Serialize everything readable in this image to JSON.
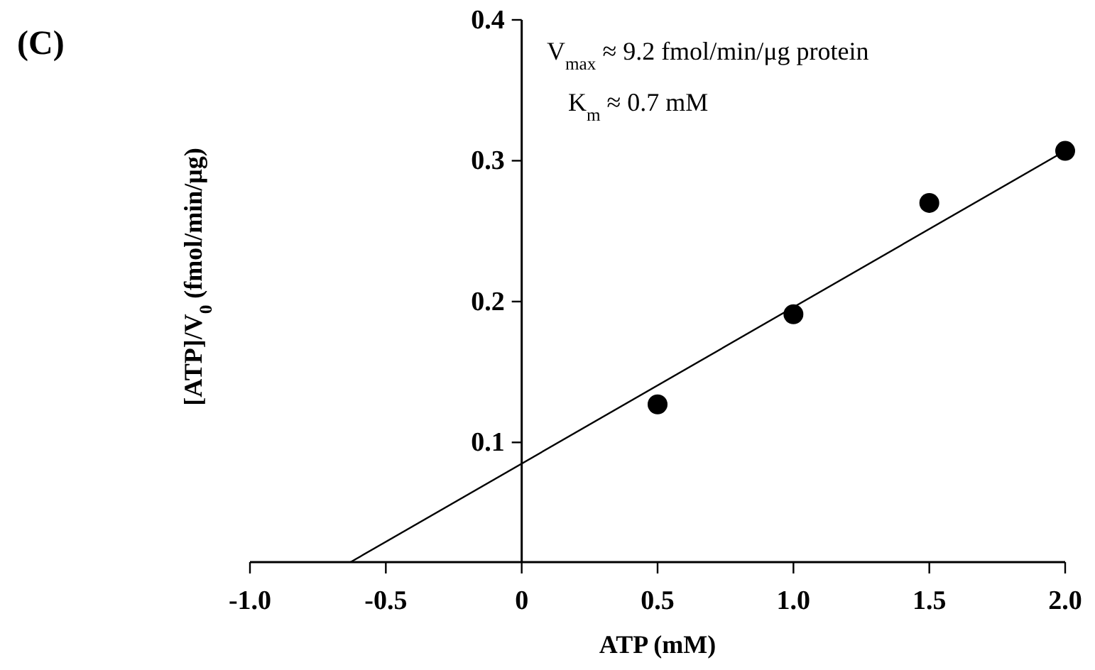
{
  "chart_data": {
    "type": "scatter",
    "title": "(C)",
    "xlabel": "ATP (mM)",
    "ylabel": "[ATP]/V$_{0}$  (fmol/min/μg)",
    "annotations": [
      "V$_{max}$ ≈ 9.2 fmol/min/μg  protein",
      "K$_{m}$ ≈  0.7 mM"
    ],
    "series": [
      {
        "color": "#000000",
        "marker": "circle",
        "x": [
          0.5,
          1.0,
          1.5,
          2.0
        ],
        "values": [
          0.127,
          0.191,
          0.27,
          0.307
        ]
      },
      {
        "type": "line",
        "color": "#000000",
        "marker": "none",
        "x": [
          -0.63,
          2.0
        ],
        "values": [
          0.015,
          0.307
        ]
      }
    ],
    "xlim": [
      -1,
      2
    ],
    "xticks": [
      {
        "value": -1,
        "label": "-1.0"
      },
      -0.5,
      0,
      0.5,
      {
        "value": 1,
        "label": "1.0"
      },
      1.5,
      {
        "value": 2,
        "label": "2.0"
      }
    ],
    "ylim": [
      0.015,
      0.4
    ],
    "yticks": [
      0.1,
      0.2,
      0.3,
      0.4
    ],
    "grid": false,
    "line_style": "solid"
  }
}
